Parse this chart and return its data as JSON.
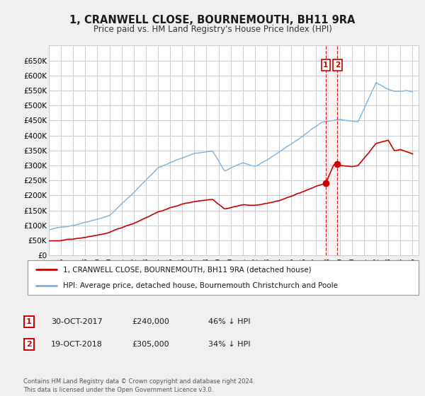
{
  "title": "1, CRANWELL CLOSE, BOURNEMOUTH, BH11 9RA",
  "subtitle": "Price paid vs. HM Land Registry's House Price Index (HPI)",
  "background_color": "#f0f0f0",
  "plot_bg_color": "#ffffff",
  "grid_color": "#cccccc",
  "hpi_color": "#7ab3e0",
  "price_color": "#cc0000",
  "marker1_date": 2017.83,
  "marker1_price": 240000,
  "marker2_date": 2018.8,
  "marker2_price": 305000,
  "vline_color": "#cc0000",
  "legend1": "1, CRANWELL CLOSE, BOURNEMOUTH, BH11 9RA (detached house)",
  "legend2": "HPI: Average price, detached house, Bournemouth Christchurch and Poole",
  "table_row1": [
    "1",
    "30-OCT-2017",
    "£240,000",
    "46% ↓ HPI"
  ],
  "table_row2": [
    "2",
    "19-OCT-2018",
    "£305,000",
    "34% ↓ HPI"
  ],
  "footer": "Contains HM Land Registry data © Crown copyright and database right 2024.\nThis data is licensed under the Open Government Licence v3.0.",
  "ylim": [
    0,
    700000
  ],
  "xlim_start": 1995.0,
  "xlim_end": 2025.5,
  "yticks": [
    0,
    50000,
    100000,
    150000,
    200000,
    250000,
    300000,
    350000,
    400000,
    450000,
    500000,
    550000,
    600000,
    650000
  ],
  "ytick_labels": [
    "£0",
    "£50K",
    "£100K",
    "£150K",
    "£200K",
    "£250K",
    "£300K",
    "£350K",
    "£400K",
    "£450K",
    "£500K",
    "£550K",
    "£600K",
    "£650K"
  ]
}
